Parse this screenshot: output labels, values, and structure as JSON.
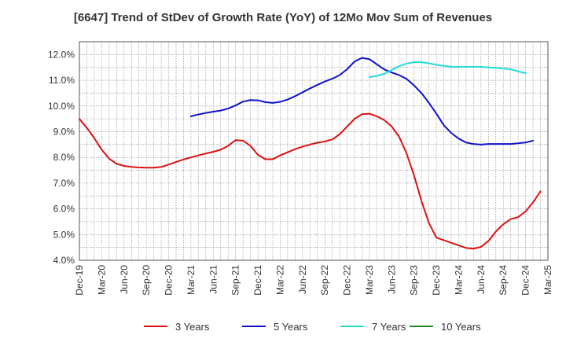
{
  "chart_data": {
    "type": "line",
    "title": "[6647]  Trend of StDev of Growth Rate (YoY) of 12Mo Mov Sum of Revenues",
    "xlabel": "",
    "ylabel": "",
    "ylim": [
      4.0,
      12.5
    ],
    "yticks": [
      4.0,
      5.0,
      6.0,
      7.0,
      8.0,
      9.0,
      10.0,
      11.0,
      12.0
    ],
    "ytick_labels": [
      "4.0%",
      "5.0%",
      "6.0%",
      "7.0%",
      "8.0%",
      "9.0%",
      "10.0%",
      "11.0%",
      "12.0%"
    ],
    "x_tick_labels": [
      "Dec-19",
      "Mar-20",
      "Jun-20",
      "Sep-20",
      "Dec-20",
      "Mar-21",
      "Jun-21",
      "Sep-21",
      "Dec-21",
      "Mar-22",
      "Jun-22",
      "Sep-22",
      "Dec-22",
      "Mar-23",
      "Jun-23",
      "Sep-23",
      "Dec-23",
      "Mar-24",
      "Jun-24",
      "Sep-24",
      "Dec-24",
      "Mar-25"
    ],
    "grid": true,
    "legend_position": "bottom",
    "series": [
      {
        "name": "3 Years",
        "color": "#dd1111",
        "start_index": 0,
        "values": [
          9.5,
          9.15,
          8.75,
          8.3,
          7.95,
          7.75,
          7.67,
          7.63,
          7.61,
          7.6,
          7.6,
          7.63,
          7.72,
          7.82,
          7.92,
          8.0,
          8.08,
          8.15,
          8.22,
          8.3,
          8.45,
          8.67,
          8.65,
          8.45,
          8.1,
          7.93,
          7.93,
          8.08,
          8.2,
          8.32,
          8.42,
          8.5,
          8.57,
          8.62,
          8.7,
          8.9,
          9.2,
          9.5,
          9.68,
          9.7,
          9.6,
          9.45,
          9.2,
          8.8,
          8.15,
          7.3,
          6.3,
          5.45,
          4.88,
          4.78,
          4.68,
          4.58,
          4.48,
          4.45,
          4.52,
          4.75,
          5.12,
          5.4,
          5.6,
          5.68,
          5.9,
          6.25,
          6.68
        ]
      },
      {
        "name": "5 Years",
        "color": "#1111cc",
        "start_index": 15,
        "values": [
          9.6,
          9.67,
          9.73,
          9.78,
          9.82,
          9.9,
          10.02,
          10.17,
          10.23,
          10.22,
          10.15,
          10.12,
          10.16,
          10.25,
          10.38,
          10.53,
          10.68,
          10.82,
          10.95,
          11.06,
          11.2,
          11.43,
          11.73,
          11.87,
          11.82,
          11.62,
          11.42,
          11.3,
          11.2,
          11.05,
          10.8,
          10.5,
          10.12,
          9.7,
          9.25,
          8.95,
          8.73,
          8.58,
          8.52,
          8.5,
          8.52,
          8.52,
          8.52,
          8.52,
          8.55,
          8.58,
          8.65
        ]
      },
      {
        "name": "7 Years",
        "color": "#22dddd",
        "start_index": 39,
        "values": [
          11.12,
          11.17,
          11.25,
          11.4,
          11.55,
          11.65,
          11.7,
          11.7,
          11.66,
          11.6,
          11.56,
          11.53,
          11.52,
          11.52,
          11.52,
          11.52,
          11.5,
          11.48,
          11.46,
          11.42,
          11.35,
          11.27
        ]
      },
      {
        "name": "10 Years",
        "color": "#228822",
        "start_index": 0,
        "values": []
      }
    ]
  }
}
